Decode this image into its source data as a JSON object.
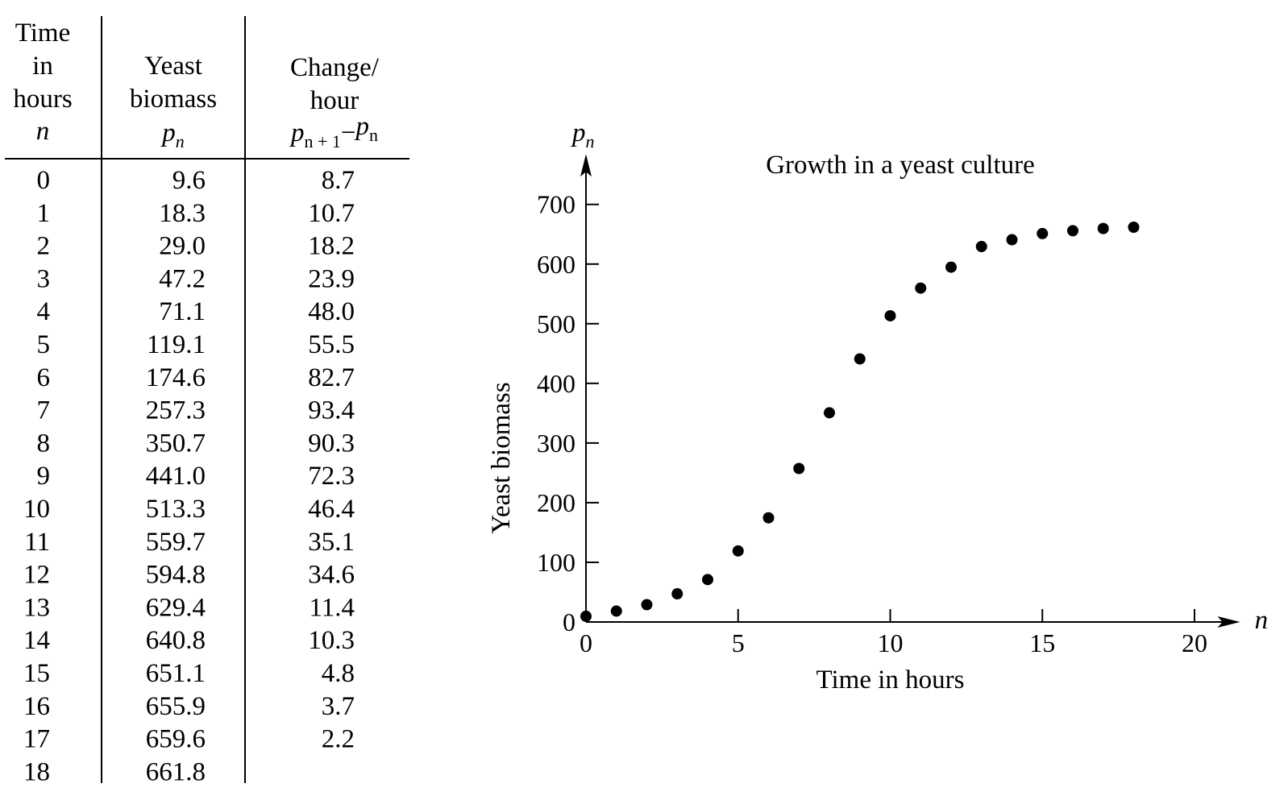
{
  "table": {
    "headers": [
      {
        "lines": [
          "Time",
          "in",
          "hours"
        ],
        "symbol": "n"
      },
      {
        "lines": [
          "Yeast",
          "biomass"
        ],
        "symbol": "p",
        "symbol_sub": "n"
      },
      {
        "lines": [
          "Change/",
          "hour"
        ],
        "symbol_expr": [
          {
            "base": "p",
            "sub": "n + 1"
          },
          {
            "op": "−"
          },
          {
            "base": "p",
            "sub": "n"
          }
        ]
      }
    ],
    "rows": [
      {
        "n": "0",
        "p": "9.6",
        "change": "8.7"
      },
      {
        "n": "1",
        "p": "18.3",
        "change": "10.7"
      },
      {
        "n": "2",
        "p": "29.0",
        "change": "18.2"
      },
      {
        "n": "3",
        "p": "47.2",
        "change": "23.9"
      },
      {
        "n": "4",
        "p": "71.1",
        "change": "48.0"
      },
      {
        "n": "5",
        "p": "119.1",
        "change": "55.5"
      },
      {
        "n": "6",
        "p": "174.6",
        "change": "82.7"
      },
      {
        "n": "7",
        "p": "257.3",
        "change": "93.4"
      },
      {
        "n": "8",
        "p": "350.7",
        "change": "90.3"
      },
      {
        "n": "9",
        "p": "441.0",
        "change": "72.3"
      },
      {
        "n": "10",
        "p": "513.3",
        "change": "46.4"
      },
      {
        "n": "11",
        "p": "559.7",
        "change": "35.1"
      },
      {
        "n": "12",
        "p": "594.8",
        "change": "34.6"
      },
      {
        "n": "13",
        "p": "629.4",
        "change": "11.4"
      },
      {
        "n": "14",
        "p": "640.8",
        "change": "10.3"
      },
      {
        "n": "15",
        "p": "651.1",
        "change": "4.8"
      },
      {
        "n": "16",
        "p": "655.9",
        "change": "3.7"
      },
      {
        "n": "17",
        "p": "659.6",
        "change": "2.2"
      },
      {
        "n": "18",
        "p": "661.8",
        "change": ""
      }
    ]
  },
  "chart_data": {
    "type": "scatter",
    "title": "Growth in a yeast culture",
    "xlabel": "Time in hours",
    "ylabel": "Yeast biomass",
    "x_axis_symbol": "n",
    "y_axis_symbol": "p",
    "y_axis_symbol_sub": "n",
    "xlim": [
      0,
      21.5
    ],
    "ylim": [
      0,
      760
    ],
    "xticks": [
      0,
      5,
      10,
      15,
      20
    ],
    "yticks": [
      0,
      100,
      200,
      300,
      400,
      500,
      600,
      700
    ],
    "grid": false,
    "series": [
      {
        "name": "Yeast biomass",
        "x": [
          0,
          1,
          2,
          3,
          4,
          5,
          6,
          7,
          8,
          9,
          10,
          11,
          12,
          13,
          14,
          15,
          16,
          17,
          18
        ],
        "y": [
          9.6,
          18.3,
          29.0,
          47.2,
          71.1,
          119.1,
          174.6,
          257.3,
          350.7,
          441.0,
          513.3,
          559.7,
          594.8,
          629.4,
          640.8,
          651.1,
          655.9,
          659.6,
          661.8
        ]
      }
    ],
    "colors": {
      "ink": "#000000",
      "background": "#ffffff"
    }
  }
}
